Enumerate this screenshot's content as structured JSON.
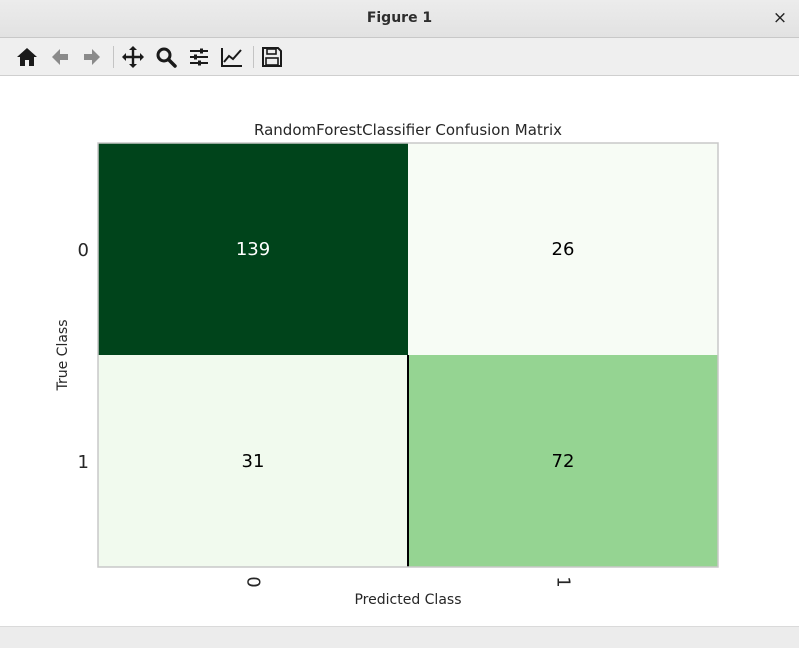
{
  "window": {
    "title": "Figure 1",
    "close_label": "×"
  },
  "toolbar": {
    "buttons": [
      {
        "name": "home-icon",
        "tooltip": "Home"
      },
      {
        "name": "back-icon",
        "tooltip": "Back"
      },
      {
        "name": "forward-icon",
        "tooltip": "Forward"
      },
      {
        "name": "pan-icon",
        "tooltip": "Pan"
      },
      {
        "name": "zoom-icon",
        "tooltip": "Zoom"
      },
      {
        "name": "subplots-icon",
        "tooltip": "Subplots"
      },
      {
        "name": "customize-icon",
        "tooltip": "Customize"
      },
      {
        "name": "save-icon",
        "tooltip": "Save"
      }
    ]
  },
  "chart_data": {
    "type": "heatmap",
    "title": "RandomForestClassifier Confusion Matrix",
    "xlabel": "Predicted Class",
    "ylabel": "True Class",
    "x_categories": [
      "0",
      "1"
    ],
    "y_categories": [
      "0",
      "1"
    ],
    "values": [
      [
        139,
        26
      ],
      [
        31,
        72
      ]
    ],
    "colormap": "Greens",
    "colors": {
      "low": "#f7fcf5",
      "high": "#00441b",
      "light_text": "#ffffff",
      "dark_text": "#000000"
    }
  }
}
